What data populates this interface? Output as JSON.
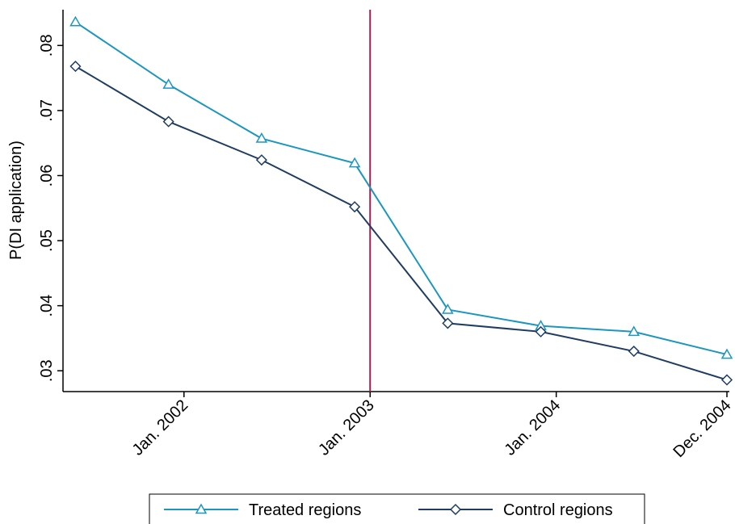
{
  "chart_data": {
    "type": "line",
    "y_label": "P(DI application)",
    "x": [
      2001.417,
      2001.917,
      2002.417,
      2002.917,
      2003.417,
      2003.917,
      2004.417,
      2004.917
    ],
    "series": [
      {
        "name": "Treated regions",
        "color": "#1b96bf",
        "marker": "triangle",
        "values": [
          0.0836,
          0.074,
          0.0657,
          0.0619,
          0.0394,
          0.0369,
          0.036,
          0.0325
        ]
      },
      {
        "name": "Control regions",
        "color": "#1f3d63",
        "marker": "diamond",
        "values": [
          0.0768,
          0.0683,
          0.0624,
          0.0552,
          0.0373,
          0.036,
          0.033,
          0.0286
        ]
      }
    ],
    "xlim": [
      2001.35,
      2004.93
    ],
    "ylim": [
      0.0268,
      0.0855
    ],
    "xticks": [
      {
        "value": 2002,
        "label": "Jan. 2002"
      },
      {
        "value": 2003,
        "label": "Jan. 2003"
      },
      {
        "value": 2004,
        "label": "Jan. 2004"
      },
      {
        "value": 2004.917,
        "label": "Dec. 2004"
      }
    ],
    "yticks": [
      {
        "value": 0.03,
        "label": ".03"
      },
      {
        "value": 0.04,
        "label": ".04"
      },
      {
        "value": 0.05,
        "label": ".05"
      },
      {
        "value": 0.06,
        "label": ".06"
      },
      {
        "value": 0.07,
        "label": ".07"
      },
      {
        "value": 0.08,
        "label": ".08"
      }
    ],
    "xline": 2003,
    "xline_color": "#b5174a",
    "legend": "bottom"
  }
}
